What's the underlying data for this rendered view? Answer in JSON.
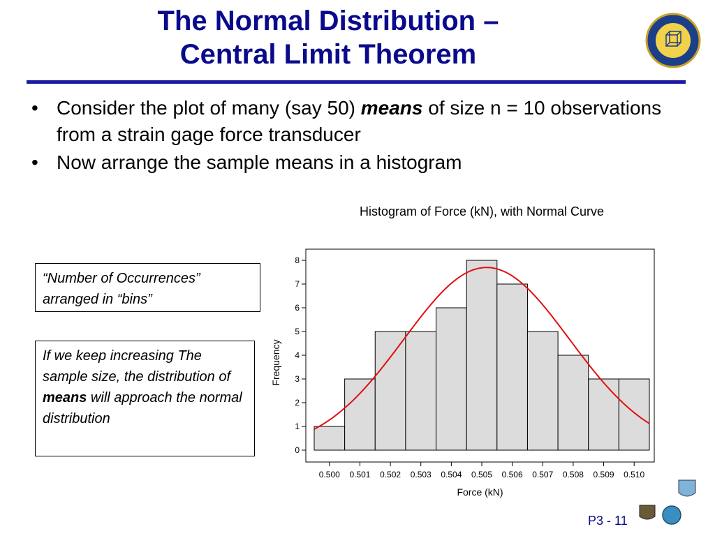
{
  "slide": {
    "title_line1": "The Normal Distribution –",
    "title_line2": "Central Limit Theorem",
    "bullets": [
      {
        "before": "Consider the plot of many (say 50) ",
        "emph": "means",
        "after": " of size n = 10 observations from a strain gage force transducer"
      },
      {
        "text": "Now arrange the sample means in a histogram"
      }
    ],
    "box1_line1": "“Number of Occurrences”",
    "box1_line2": "arranged in “bins”",
    "box2_part1": "If we keep increasing The sample size, the distribution of ",
    "box2_emph": "means",
    "box2_part2": " will approach the normal distribution",
    "page_number": "P3 - 11",
    "bullet_glyph": "•"
  },
  "colors": {
    "title": "#0a0a8c",
    "rule": "#1a1aa0",
    "bar_fill": "#dcdcdc",
    "curve": "#e01010"
  },
  "chart_data": {
    "type": "bar",
    "title": "Histogram of Force (kN), with Normal Curve",
    "xlabel": "Force (kN)",
    "ylabel": "Frequency",
    "categories": [
      "0.500",
      "0.501",
      "0.502",
      "0.503",
      "0.504",
      "0.505",
      "0.506",
      "0.507",
      "0.508",
      "0.509",
      "0.510"
    ],
    "values": [
      1,
      3,
      5,
      5,
      6,
      8,
      7,
      5,
      4,
      3,
      3
    ],
    "yticks": [
      "0",
      "1",
      "2",
      "3",
      "4",
      "5",
      "6",
      "7",
      "8"
    ],
    "ylim": [
      0,
      8
    ],
    "grid": false,
    "overlay": {
      "type": "normal_curve",
      "mean": 0.50516,
      "sd": 0.00272,
      "peak": 7.7
    }
  }
}
